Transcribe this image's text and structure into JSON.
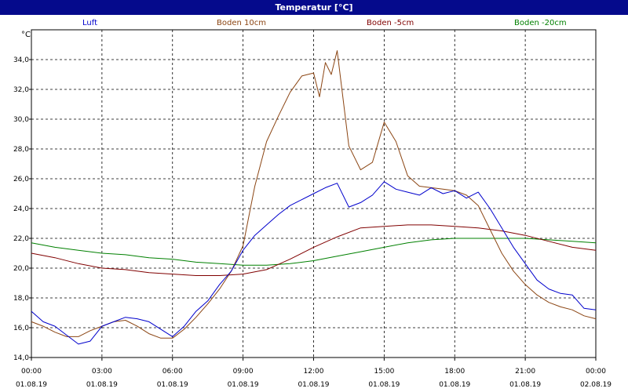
{
  "window": {
    "title": "Temperatur [°C]"
  },
  "chart_data": {
    "type": "line",
    "title": "Temperatur [°C]",
    "ylabel": "°C",
    "xlabel": "",
    "ylim": [
      14.0,
      36.0
    ],
    "xlim_hours": [
      0,
      24
    ],
    "y_ticks": [
      "14,0",
      "16,0",
      "18,0",
      "20,0",
      "22,0",
      "24,0",
      "26,0",
      "28,0",
      "30,0",
      "32,0",
      "34,0"
    ],
    "y_tick_values": [
      14,
      16,
      18,
      20,
      22,
      24,
      26,
      28,
      30,
      32,
      34
    ],
    "x_ticks": [
      {
        "time": "00:00",
        "date": "01.08.19"
      },
      {
        "time": "03:00",
        "date": "01.08.19"
      },
      {
        "time": "06:00",
        "date": "01.08.19"
      },
      {
        "time": "09:00",
        "date": "01.08.19"
      },
      {
        "time": "12:00",
        "date": "01.08.19"
      },
      {
        "time": "15:00",
        "date": "01.08.19"
      },
      {
        "time": "18:00",
        "date": "01.08.19"
      },
      {
        "time": "21:00",
        "date": "01.08.19"
      },
      {
        "time": "00:00",
        "date": "02.08.19"
      }
    ],
    "grid": true,
    "legend_position": "top",
    "series": [
      {
        "name": "Luft",
        "color": "#0000cc",
        "x": [
          0,
          0.5,
          1,
          1.5,
          2,
          2.5,
          3,
          3.5,
          4,
          4.5,
          5,
          5.5,
          6,
          6.5,
          7,
          7.5,
          8,
          8.5,
          9,
          9.5,
          10,
          10.5,
          11,
          11.5,
          12,
          12.5,
          13,
          13.5,
          14,
          14.5,
          15,
          15.5,
          16,
          16.5,
          17,
          17.5,
          18,
          18.5,
          19,
          19.5,
          20,
          20.5,
          21,
          21.5,
          22,
          22.5,
          23,
          23.5,
          24
        ],
        "y": [
          17.1,
          16.4,
          16.1,
          15.5,
          14.9,
          15.1,
          16.1,
          16.4,
          16.7,
          16.6,
          16.4,
          15.9,
          15.4,
          16.1,
          17.1,
          17.8,
          18.9,
          19.8,
          21.2,
          22.2,
          22.9,
          23.6,
          24.2,
          24.6,
          25.0,
          25.4,
          25.7,
          24.1,
          24.4,
          24.9,
          25.8,
          25.3,
          25.1,
          24.9,
          25.4,
          25.0,
          25.2,
          24.7,
          25.1,
          24.0,
          22.7,
          21.4,
          20.3,
          19.2,
          18.6,
          18.3,
          18.2,
          17.3,
          17.2
        ]
      },
      {
        "name": "Boden 10cm",
        "color": "#8b4513",
        "x": [
          0,
          0.5,
          1,
          1.5,
          2,
          2.5,
          3,
          3.5,
          4,
          4.5,
          5,
          5.5,
          6,
          6.5,
          7,
          7.5,
          8,
          8.5,
          9,
          9.5,
          10,
          10.5,
          11,
          11.5,
          12,
          12.25,
          12.5,
          12.75,
          13,
          13.5,
          14,
          14.5,
          15,
          15.5,
          16,
          16.5,
          17,
          17.5,
          18,
          18.5,
          19,
          19.5,
          20,
          20.5,
          21,
          21.5,
          22,
          22.5,
          23,
          23.5,
          24
        ],
        "y": [
          16.4,
          16.1,
          15.7,
          15.4,
          15.4,
          15.8,
          16.1,
          16.4,
          16.5,
          16.1,
          15.6,
          15.3,
          15.3,
          15.9,
          16.7,
          17.6,
          18.6,
          19.8,
          21.5,
          25.5,
          28.5,
          30.2,
          31.8,
          32.9,
          33.1,
          31.5,
          33.8,
          33.0,
          34.6,
          28.2,
          26.6,
          27.1,
          29.8,
          28.5,
          26.2,
          25.5,
          25.4,
          25.3,
          25.2,
          24.9,
          24.2,
          22.6,
          21.0,
          19.8,
          18.9,
          18.2,
          17.7,
          17.4,
          17.2,
          16.8,
          16.6
        ]
      },
      {
        "name": "Boden -5cm",
        "color": "#800000",
        "x": [
          0,
          1,
          2,
          3,
          4,
          5,
          6,
          7,
          8,
          9,
          10,
          11,
          12,
          13,
          14,
          15,
          16,
          17,
          18,
          19,
          20,
          21,
          22,
          23,
          24
        ],
        "y": [
          21.0,
          20.7,
          20.3,
          20.0,
          19.9,
          19.7,
          19.6,
          19.5,
          19.5,
          19.6,
          19.9,
          20.6,
          21.4,
          22.1,
          22.7,
          22.8,
          22.9,
          22.9,
          22.8,
          22.7,
          22.5,
          22.2,
          21.8,
          21.4,
          21.2
        ]
      },
      {
        "name": "Boden -20cm",
        "color": "#008000",
        "x": [
          0,
          1,
          2,
          3,
          4,
          5,
          6,
          7,
          8,
          9,
          10,
          11,
          12,
          13,
          14,
          15,
          16,
          17,
          18,
          19,
          20,
          21,
          22,
          23,
          24
        ],
        "y": [
          21.7,
          21.4,
          21.2,
          21.0,
          20.9,
          20.7,
          20.6,
          20.4,
          20.3,
          20.2,
          20.2,
          20.3,
          20.5,
          20.8,
          21.1,
          21.4,
          21.7,
          21.9,
          22.0,
          22.0,
          22.0,
          22.0,
          21.9,
          21.8,
          21.7
        ]
      }
    ]
  }
}
